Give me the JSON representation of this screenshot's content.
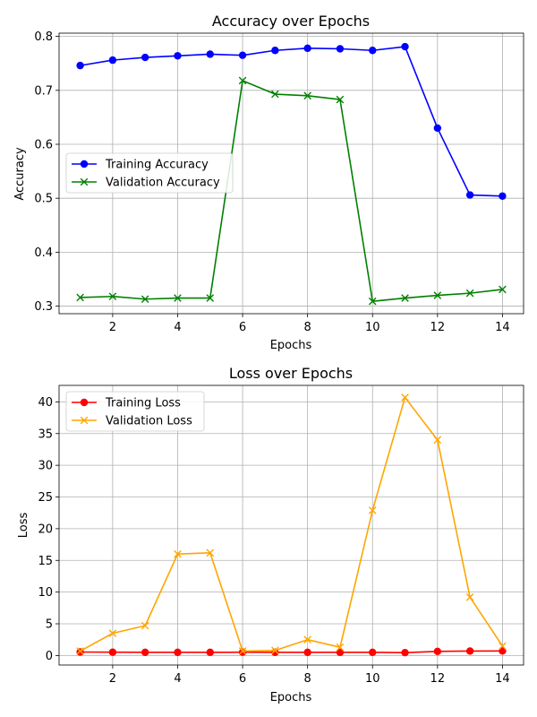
{
  "chart_data": [
    {
      "type": "line",
      "title": "Accuracy over Epochs",
      "xlabel": "Epochs",
      "ylabel": "Accuracy",
      "x": [
        1,
        2,
        3,
        4,
        5,
        6,
        7,
        8,
        9,
        10,
        11,
        12,
        13,
        14
      ],
      "xticks": [
        "2",
        "4",
        "6",
        "8",
        "10",
        "12",
        "14"
      ],
      "yticks": [
        "0.3",
        "0.4",
        "0.5",
        "0.6",
        "0.7",
        "0.8"
      ],
      "xlim": [
        0.35,
        14.65
      ],
      "ylim": [
        0.286,
        0.806
      ],
      "grid": true,
      "legend_position": "center-left",
      "series": [
        {
          "name": "Training Accuracy",
          "color": "#0000ff",
          "marker": "circle",
          "values": [
            0.746,
            0.756,
            0.761,
            0.764,
            0.767,
            0.765,
            0.774,
            0.778,
            0.777,
            0.774,
            0.781,
            0.63,
            0.506,
            0.504
          ]
        },
        {
          "name": "Validation Accuracy",
          "color": "#008000",
          "marker": "x",
          "values": [
            0.316,
            0.318,
            0.313,
            0.315,
            0.315,
            0.718,
            0.693,
            0.69,
            0.683,
            0.309,
            0.315,
            0.32,
            0.324,
            0.331
          ]
        }
      ]
    },
    {
      "type": "line",
      "title": "Loss over Epochs",
      "xlabel": "Epochs",
      "ylabel": "Loss",
      "x": [
        1,
        2,
        3,
        4,
        5,
        6,
        7,
        8,
        9,
        10,
        11,
        12,
        13,
        14
      ],
      "xticks": [
        "2",
        "4",
        "6",
        "8",
        "10",
        "12",
        "14"
      ],
      "yticks": [
        "0",
        "5",
        "10",
        "15",
        "20",
        "25",
        "30",
        "35",
        "40"
      ],
      "xlim": [
        0.35,
        14.65
      ],
      "ylim": [
        -1.5,
        42.6
      ],
      "grid": true,
      "legend_position": "top-left",
      "series": [
        {
          "name": "Training Loss",
          "color": "#ff0000",
          "marker": "circle",
          "values": [
            0.55,
            0.52,
            0.5,
            0.5,
            0.5,
            0.52,
            0.5,
            0.5,
            0.5,
            0.5,
            0.45,
            0.65,
            0.7,
            0.72
          ]
        },
        {
          "name": "Validation Loss",
          "color": "#ffa500",
          "marker": "x",
          "values": [
            0.7,
            3.5,
            4.7,
            16.0,
            16.2,
            0.7,
            0.8,
            2.5,
            1.3,
            22.9,
            40.7,
            34.0,
            9.2,
            1.5
          ]
        }
      ]
    }
  ]
}
